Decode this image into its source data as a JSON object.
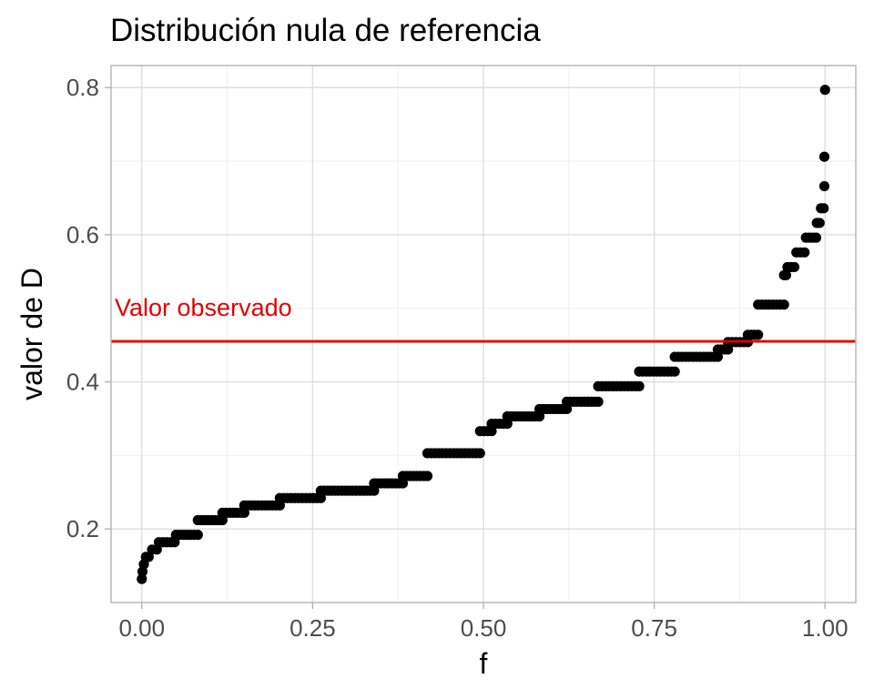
{
  "chart_data": {
    "type": "scatter",
    "title": "Distribución nula de referencia",
    "xlabel": "f",
    "ylabel": "valor de D",
    "xlim": [
      -0.045,
      1.045
    ],
    "ylim": [
      0.1,
      0.83
    ],
    "x_ticks": [
      0.0,
      0.25,
      0.5,
      0.75,
      1.0
    ],
    "x_tick_labels": [
      "0.00",
      "0.25",
      "0.50",
      "0.75",
      "1.00"
    ],
    "y_ticks": [
      0.2,
      0.4,
      0.6,
      0.8
    ],
    "y_tick_labels": [
      "0.2",
      "0.4",
      "0.6",
      "0.8"
    ],
    "grid": true,
    "point_color": "#000000",
    "observed_line": {
      "value": 0.455,
      "label": "Valor observado",
      "color": "#e00000"
    },
    "steps": [
      {
        "x": [
          0.0,
          0.0
        ],
        "y": 0.132
      },
      {
        "x": [
          0.001,
          0.001
        ],
        "y": 0.142
      },
      {
        "x": [
          0.003,
          0.003
        ],
        "y": 0.152
      },
      {
        "x": [
          0.006,
          0.01
        ],
        "y": 0.162
      },
      {
        "x": [
          0.015,
          0.022
        ],
        "y": 0.172
      },
      {
        "x": [
          0.025,
          0.048
        ],
        "y": 0.182
      },
      {
        "x": [
          0.05,
          0.082
        ],
        "y": 0.192
      },
      {
        "x": [
          0.082,
          0.118
        ],
        "y": 0.212
      },
      {
        "x": [
          0.118,
          0.15
        ],
        "y": 0.222
      },
      {
        "x": [
          0.15,
          0.202
        ],
        "y": 0.232
      },
      {
        "x": [
          0.202,
          0.262
        ],
        "y": 0.242
      },
      {
        "x": [
          0.262,
          0.34
        ],
        "y": 0.252
      },
      {
        "x": [
          0.34,
          0.382
        ],
        "y": 0.262
      },
      {
        "x": [
          0.382,
          0.418
        ],
        "y": 0.272
      },
      {
        "x": [
          0.418,
          0.495
        ],
        "y": 0.303
      },
      {
        "x": [
          0.495,
          0.512
        ],
        "y": 0.333
      },
      {
        "x": [
          0.512,
          0.535
        ],
        "y": 0.343
      },
      {
        "x": [
          0.535,
          0.582
        ],
        "y": 0.353
      },
      {
        "x": [
          0.582,
          0.622
        ],
        "y": 0.363
      },
      {
        "x": [
          0.622,
          0.668
        ],
        "y": 0.373
      },
      {
        "x": [
          0.668,
          0.728
        ],
        "y": 0.394
      },
      {
        "x": [
          0.728,
          0.78
        ],
        "y": 0.414
      },
      {
        "x": [
          0.78,
          0.843
        ],
        "y": 0.434
      },
      {
        "x": [
          0.843,
          0.858
        ],
        "y": 0.444
      },
      {
        "x": [
          0.858,
          0.887
        ],
        "y": 0.454
      },
      {
        "x": [
          0.887,
          0.902
        ],
        "y": 0.464
      },
      {
        "x": [
          0.902,
          0.94
        ],
        "y": 0.505
      },
      {
        "x": [
          0.94,
          0.943
        ],
        "y": 0.545
      },
      {
        "x": [
          0.945,
          0.955
        ],
        "y": 0.556
      },
      {
        "x": [
          0.958,
          0.97
        ],
        "y": 0.576
      },
      {
        "x": [
          0.972,
          0.987
        ],
        "y": 0.596
      },
      {
        "x": [
          0.988,
          0.992
        ],
        "y": 0.616
      },
      {
        "x": [
          0.994,
          0.998
        ],
        "y": 0.636
      },
      {
        "x": [
          0.999,
          0.999
        ],
        "y": 0.666
      },
      {
        "x": [
          0.999,
          0.999
        ],
        "y": 0.706
      },
      {
        "x": [
          1.0,
          1.0
        ],
        "y": 0.797
      }
    ]
  }
}
